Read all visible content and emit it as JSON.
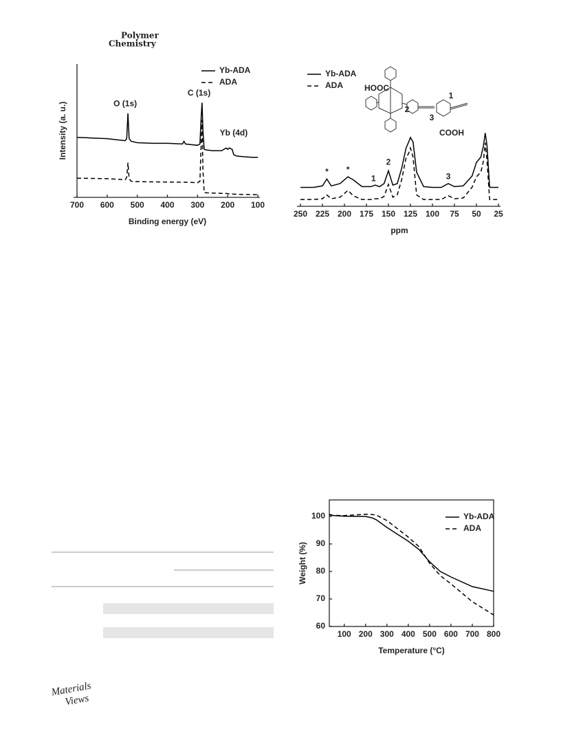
{
  "header": {
    "journal_line1": "Polymer",
    "journal_line2": "Chemistry"
  },
  "footer": {
    "logo_line1": "Materials",
    "logo_line2": "Views"
  },
  "chart_data": [
    {
      "type": "line",
      "xlabel": "Binding energy (eV)",
      "ylabel": "Intensity (a. u.)",
      "x": [
        700,
        650,
        600,
        560,
        540,
        535,
        531,
        527,
        520,
        500,
        450,
        400,
        350,
        345,
        340,
        320,
        300,
        292,
        288,
        285,
        282,
        278,
        270,
        250,
        220,
        205,
        200,
        195,
        185,
        180,
        170,
        150,
        120,
        100
      ],
      "series": [
        {
          "name": "Yb-ADA",
          "color": "#000000",
          "dash": "solid",
          "values": [
            45,
            44.5,
            44,
            43,
            42.5,
            44,
            63,
            44,
            42,
            41,
            40.5,
            40.5,
            40,
            42,
            40,
            39.5,
            39,
            40,
            60,
            71,
            50,
            36,
            35.5,
            35,
            35,
            37,
            36,
            37,
            36,
            32,
            31,
            30.5,
            30,
            30
          ]
        },
        {
          "name": "ADA",
          "color": "#000000",
          "dash": "dashed",
          "values": [
            14.4,
            14.2,
            14,
            13.5,
            13.2,
            15,
            26,
            14,
            12,
            11.8,
            11.6,
            11.5,
            11.4,
            11.4,
            11.3,
            11.2,
            11,
            12,
            40,
            58,
            20,
            3.6,
            3.4,
            3.2,
            3,
            3,
            2.8,
            2.7,
            2.5,
            2.4,
            2.3,
            2.2,
            2.1,
            2
          ]
        }
      ],
      "annotations": [
        {
          "text": "O (1s)",
          "x": 540,
          "y": 70
        },
        {
          "text": "C (1s)",
          "x": 295,
          "y": 78
        },
        {
          "text": "Yb (4d)",
          "x": 180,
          "y": 48
        }
      ],
      "xlim": [
        700,
        100
      ],
      "ylim": [
        0,
        100
      ],
      "xticks": [
        700,
        600,
        500,
        400,
        300,
        200,
        100
      ],
      "legend": "upper right",
      "frame": "left-bottom"
    },
    {
      "type": "line",
      "xlabel": "ppm",
      "x": [
        250,
        235,
        225,
        220,
        215,
        205,
        196,
        190,
        180,
        170,
        165,
        160,
        155,
        150,
        145,
        140,
        135,
        130,
        127,
        125,
        122,
        118,
        110,
        100,
        90,
        82,
        75,
        65,
        55,
        50,
        45,
        42,
        40,
        38,
        35,
        30,
        25
      ],
      "series": [
        {
          "name": "Yb-ADA",
          "color": "#000000",
          "dash": "solid",
          "values": [
            25,
            25,
            27,
            36,
            27,
            30,
            39,
            35,
            26,
            26,
            28,
            26,
            30,
            47,
            28,
            30,
            50,
            77,
            85,
            91,
            85,
            45,
            26,
            25,
            25,
            30,
            26,
            27,
            40,
            58,
            65,
            80,
            97,
            80,
            25,
            25,
            25
          ]
        },
        {
          "name": "ADA",
          "color": "#000000",
          "dash": "dashed",
          "values": [
            9,
            9,
            10,
            15,
            10,
            12,
            21,
            14,
            9,
            9,
            10,
            10,
            13,
            29,
            12,
            15,
            35,
            64,
            70,
            77,
            65,
            15,
            9,
            9,
            9,
            14,
            10,
            11,
            25,
            39,
            45,
            60,
            84,
            60,
            9,
            9,
            9
          ]
        }
      ],
      "annotations": [
        {
          "text": "*",
          "x": 220,
          "y": 45
        },
        {
          "text": "*",
          "x": 196,
          "y": 48
        },
        {
          "text": "1",
          "x": 167,
          "y": 36
        },
        {
          "text": "2",
          "x": 150,
          "y": 58
        },
        {
          "text": "3",
          "x": 82,
          "y": 39
        }
      ],
      "structure_labels": [
        "HOOC",
        "COOH",
        "1",
        "2",
        "3"
      ],
      "xlim": [
        250,
        25
      ],
      "ylim": [
        0,
        100
      ],
      "xticks": [
        250,
        225,
        200,
        175,
        150,
        125,
        100,
        75,
        50,
        25
      ],
      "legend": "upper left",
      "frame": "bottom"
    },
    {
      "type": "line",
      "xlabel": "Temperature (°C)",
      "ylabel": "Weight (%)",
      "x": [
        30,
        50,
        100,
        200,
        230,
        250,
        300,
        400,
        450,
        500,
        550,
        600,
        700,
        800
      ],
      "series": [
        {
          "name": "Yb-ADA",
          "color": "#000000",
          "dash": "solid",
          "values": [
            100.8,
            100.3,
            100.1,
            100,
            99.5,
            98.8,
            96,
            91,
            88,
            83.5,
            80,
            78,
            74.5,
            72.8
          ]
        },
        {
          "name": "ADA",
          "color": "#000000",
          "dash": "dashed",
          "values": [
            100.5,
            100.4,
            100.3,
            100.8,
            100.7,
            100.5,
            98.5,
            92.5,
            89,
            83,
            78.5,
            75.5,
            69,
            64.2
          ]
        }
      ],
      "xlim": [
        30,
        800
      ],
      "ylim": [
        60,
        106
      ],
      "xticks": [
        100,
        200,
        300,
        400,
        500,
        600,
        700,
        800
      ],
      "yticks": [
        60,
        70,
        80,
        90,
        100
      ],
      "legend": "upper right",
      "frame": "box"
    }
  ]
}
